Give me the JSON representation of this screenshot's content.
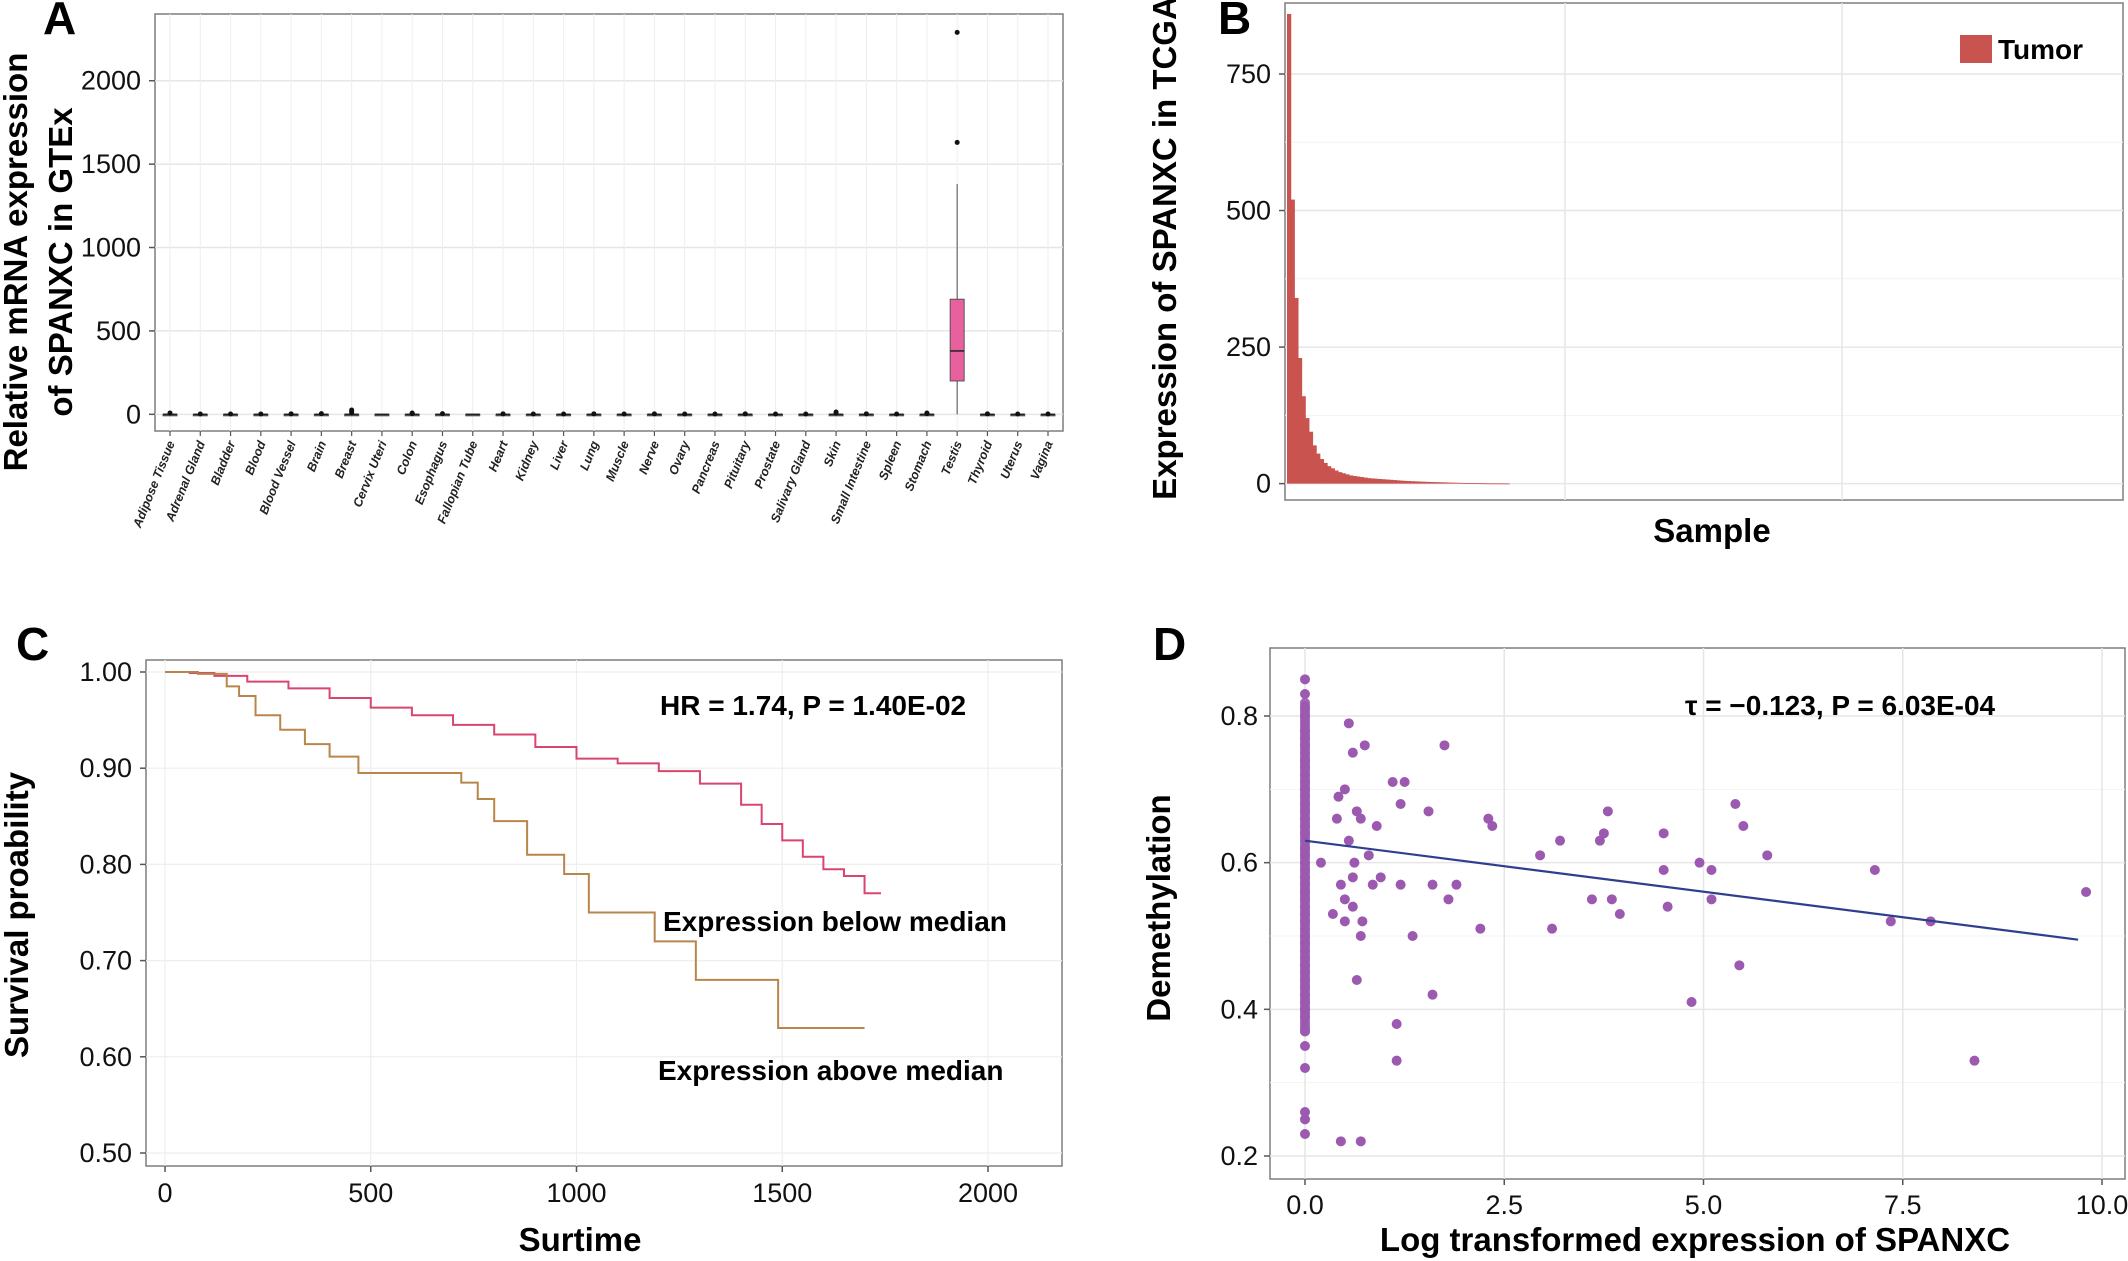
{
  "panels": {
    "a": "A",
    "b": "B",
    "c": "C",
    "d": "D"
  },
  "chart_data": [
    {
      "panel": "A",
      "type": "box",
      "ylabel_line1": "Relative mRNA expression",
      "ylabel_line2": "of SPANXC in GTEx",
      "ylim": [
        -100,
        2400
      ],
      "yticks": [
        0,
        500,
        1000,
        1500,
        2000
      ],
      "grid": true,
      "categories": [
        "Adipose Tissue",
        "Adrenal Gland",
        "Bladder",
        "Blood",
        "Blood Vessel",
        "Brain",
        "Breast",
        "Cervix Uteri",
        "Colon",
        "Esophagus",
        "Fallopian Tube",
        "Heart",
        "Kidney",
        "Liver",
        "Lung",
        "Muscle",
        "Nerve",
        "Ovary",
        "Pancreas",
        "Pituitary",
        "Prostate",
        "Salivary Gland",
        "Skin",
        "Small Intestine",
        "Spleen",
        "Stomach",
        "Testis",
        "Thyroid",
        "Uterus",
        "Vagina"
      ],
      "boxes": [
        {
          "category": "Adipose Tissue",
          "q1": 0,
          "median": 0,
          "q3": 0,
          "whisker_low": 0,
          "whisker_high": 5,
          "outliers": [
            8
          ]
        },
        {
          "category": "Adrenal Gland",
          "q1": 0,
          "median": 0,
          "q3": 0,
          "whisker_low": 0,
          "whisker_high": 0,
          "outliers": [
            2
          ]
        },
        {
          "category": "Bladder",
          "q1": 0,
          "median": 0,
          "q3": 0,
          "whisker_low": 0,
          "whisker_high": 0,
          "outliers": [
            2
          ]
        },
        {
          "category": "Blood",
          "q1": 0,
          "median": 0,
          "q3": 0,
          "whisker_low": 0,
          "whisker_high": 0,
          "outliers": [
            2
          ]
        },
        {
          "category": "Blood Vessel",
          "q1": 0,
          "median": 0,
          "q3": 0,
          "whisker_low": 0,
          "whisker_high": 0,
          "outliers": [
            3
          ]
        },
        {
          "category": "Brain",
          "q1": 0,
          "median": 0,
          "q3": 0,
          "whisker_low": 0,
          "whisker_high": 0,
          "outliers": [
            4
          ]
        },
        {
          "category": "Breast",
          "q1": 0,
          "median": 0,
          "q3": 0,
          "whisker_low": 0,
          "whisker_high": 5,
          "outliers": [
            10,
            18,
            26
          ]
        },
        {
          "category": "Cervix Uteri",
          "q1": 0,
          "median": 0,
          "q3": 0,
          "whisker_low": 0,
          "whisker_high": 0,
          "outliers": []
        },
        {
          "category": "Colon",
          "q1": 0,
          "median": 0,
          "q3": 0,
          "whisker_low": 0,
          "whisker_high": 0,
          "outliers": [
            4,
            8
          ]
        },
        {
          "category": "Esophagus",
          "q1": 0,
          "median": 0,
          "q3": 0,
          "whisker_low": 0,
          "whisker_high": 0,
          "outliers": [
            4
          ]
        },
        {
          "category": "Fallopian Tube",
          "q1": 0,
          "median": 0,
          "q3": 0,
          "whisker_low": 0,
          "whisker_high": 0,
          "outliers": []
        },
        {
          "category": "Heart",
          "q1": 0,
          "median": 0,
          "q3": 0,
          "whisker_low": 0,
          "whisker_high": 0,
          "outliers": [
            3
          ]
        },
        {
          "category": "Kidney",
          "q1": 0,
          "median": 0,
          "q3": 0,
          "whisker_low": 0,
          "whisker_high": 0,
          "outliers": [
            2
          ]
        },
        {
          "category": "Liver",
          "q1": 0,
          "median": 0,
          "q3": 0,
          "whisker_low": 0,
          "whisker_high": 0,
          "outliers": [
            2
          ]
        },
        {
          "category": "Lung",
          "q1": 0,
          "median": 0,
          "q3": 0,
          "whisker_low": 0,
          "whisker_high": 0,
          "outliers": [
            3
          ]
        },
        {
          "category": "Muscle",
          "q1": 0,
          "median": 0,
          "q3": 0,
          "whisker_low": 0,
          "whisker_high": 0,
          "outliers": [
            2
          ]
        },
        {
          "category": "Nerve",
          "q1": 0,
          "median": 0,
          "q3": 0,
          "whisker_low": 0,
          "whisker_high": 0,
          "outliers": [
            3
          ]
        },
        {
          "category": "Ovary",
          "q1": 0,
          "median": 0,
          "q3": 0,
          "whisker_low": 0,
          "whisker_high": 0,
          "outliers": [
            2
          ]
        },
        {
          "category": "Pancreas",
          "q1": 0,
          "median": 0,
          "q3": 0,
          "whisker_low": 0,
          "whisker_high": 0,
          "outliers": [
            2
          ]
        },
        {
          "category": "Pituitary",
          "q1": 0,
          "median": 0,
          "q3": 0,
          "whisker_low": 0,
          "whisker_high": 0,
          "outliers": [
            3
          ]
        },
        {
          "category": "Prostate",
          "q1": 0,
          "median": 0,
          "q3": 0,
          "whisker_low": 0,
          "whisker_high": 0,
          "outliers": [
            2
          ]
        },
        {
          "category": "Salivary Gland",
          "q1": 0,
          "median": 0,
          "q3": 0,
          "whisker_low": 0,
          "whisker_high": 0,
          "outliers": [
            2
          ]
        },
        {
          "category": "Skin",
          "q1": 0,
          "median": 0,
          "q3": 0,
          "whisker_low": 0,
          "whisker_high": 4,
          "outliers": [
            8,
            14
          ]
        },
        {
          "category": "Small Intestine",
          "q1": 0,
          "median": 0,
          "q3": 0,
          "whisker_low": 0,
          "whisker_high": 0,
          "outliers": [
            3
          ]
        },
        {
          "category": "Spleen",
          "q1": 0,
          "median": 0,
          "q3": 0,
          "whisker_low": 0,
          "whisker_high": 0,
          "outliers": [
            2
          ]
        },
        {
          "category": "Stomach",
          "q1": 0,
          "median": 0,
          "q3": 0,
          "whisker_low": 0,
          "whisker_high": 0,
          "outliers": [
            4,
            8
          ]
        },
        {
          "category": "Testis",
          "q1": 200,
          "median": 380,
          "q3": 690,
          "whisker_low": 0,
          "whisker_high": 1380,
          "outliers": [
            1630,
            2290
          ]
        },
        {
          "category": "Thyroid",
          "q1": 0,
          "median": 0,
          "q3": 0,
          "whisker_low": 0,
          "whisker_high": 0,
          "outliers": [
            3
          ]
        },
        {
          "category": "Uterus",
          "q1": 0,
          "median": 0,
          "q3": 0,
          "whisker_low": 0,
          "whisker_high": 0,
          "outliers": [
            2
          ]
        },
        {
          "category": "Vagina",
          "q1": 0,
          "median": 0,
          "q3": 0,
          "whisker_low": 0,
          "whisker_high": 0,
          "outliers": [
            2
          ]
        }
      ],
      "box_color": "#e8609e"
    },
    {
      "panel": "B",
      "type": "bar",
      "xlabel": "Sample",
      "ylabel": "Expression of SPANXC in TCGA",
      "ylim": [
        -30,
        880
      ],
      "yticks": [
        0,
        250,
        500,
        750
      ],
      "grid": true,
      "legend": {
        "label": "Tumor",
        "position": "top-right"
      },
      "bar_color": "#c9534f",
      "n_samples": 800,
      "values": [
        860,
        520,
        340,
        230,
        160,
        120,
        95,
        70,
        55,
        45,
        38,
        32,
        28,
        24,
        21,
        19,
        17,
        15,
        14,
        13,
        12,
        11,
        10,
        9.5,
        9,
        8.5,
        8,
        7.5,
        7,
        6.5,
        6,
        5.5,
        5,
        4.7,
        4.4,
        4.1,
        3.8,
        3.5,
        3.2,
        3.0,
        2.8,
        2.6,
        2.4,
        2.2,
        2.0,
        1.8,
        1.6,
        1.4,
        1.2,
        1.0,
        0.9,
        0.8,
        0.7,
        0.6,
        0.5,
        0.45,
        0.4,
        0.35,
        0.3,
        0.25,
        0.2
      ]
    },
    {
      "panel": "C",
      "type": "line",
      "xlabel": "Surtime",
      "ylabel": "Survival proability",
      "xlim": [
        -50,
        2200
      ],
      "ylim": [
        0.48,
        1.01
      ],
      "xticks": [
        0,
        500,
        1000,
        1500,
        2000
      ],
      "yticks": [
        0.5,
        0.6,
        0.7,
        0.8,
        0.9,
        1.0
      ],
      "ytick_labels": [
        "0.50",
        "0.60",
        "0.70",
        "0.80",
        "0.90",
        "1.00"
      ],
      "annotation": "HR = 1.74, P = 1.40E-02",
      "series": [
        {
          "name": "Expression below median",
          "color": "#d9456e",
          "points": [
            [
              0,
              1.0
            ],
            [
              60,
              0.999
            ],
            [
              120,
              0.996
            ],
            [
              200,
              0.99
            ],
            [
              300,
              0.983
            ],
            [
              400,
              0.973
            ],
            [
              500,
              0.963
            ],
            [
              600,
              0.955
            ],
            [
              700,
              0.945
            ],
            [
              800,
              0.935
            ],
            [
              900,
              0.922
            ],
            [
              1000,
              0.91
            ],
            [
              1100,
              0.905
            ],
            [
              1200,
              0.897
            ],
            [
              1300,
              0.884
            ],
            [
              1400,
              0.862
            ],
            [
              1450,
              0.842
            ],
            [
              1500,
              0.825
            ],
            [
              1550,
              0.808
            ],
            [
              1600,
              0.795
            ],
            [
              1650,
              0.788
            ],
            [
              1700,
              0.77
            ],
            [
              1740,
              0.77
            ]
          ]
        },
        {
          "name": "Expression above median",
          "color": "#b8864a",
          "points": [
            [
              0,
              1.0
            ],
            [
              80,
              0.998
            ],
            [
              150,
              0.985
            ],
            [
              180,
              0.975
            ],
            [
              220,
              0.955
            ],
            [
              280,
              0.94
            ],
            [
              340,
              0.925
            ],
            [
              400,
              0.912
            ],
            [
              470,
              0.895
            ],
            [
              720,
              0.885
            ],
            [
              760,
              0.868
            ],
            [
              800,
              0.845
            ],
            [
              880,
              0.81
            ],
            [
              970,
              0.79
            ],
            [
              1030,
              0.75
            ],
            [
              1070,
              0.75
            ],
            [
              1190,
              0.72
            ],
            [
              1290,
              0.68
            ],
            [
              1490,
              0.63
            ],
            [
              1700,
              0.63
            ]
          ]
        }
      ]
    },
    {
      "panel": "D",
      "type": "scatter",
      "xlabel": "Log transformed expression of SPANXC",
      "ylabel": "Demethylation",
      "xlim": [
        -0.4,
        10.1
      ],
      "ylim": [
        0.18,
        0.89
      ],
      "xticks": [
        0,
        2.5,
        5.0,
        7.5,
        10.0
      ],
      "xtick_labels": [
        "0.0",
        "2.5",
        "5.0",
        "7.5",
        "10.0"
      ],
      "yticks": [
        0.2,
        0.4,
        0.6,
        0.8
      ],
      "annotation": "τ = −0.123, P = 6.03E-04",
      "point_color": "#9b59b0",
      "line_color": "#2f3f8f",
      "regression": {
        "x0": 0,
        "y0": 0.63,
        "x1": 9.7,
        "y1": 0.495
      },
      "zero_group_y_range": [
        0.23,
        0.85
      ],
      "points": [
        [
          0.0,
          0.85
        ],
        [
          0.0,
          0.83
        ],
        [
          0.0,
          0.81
        ],
        [
          0.0,
          0.8
        ],
        [
          0.0,
          0.78
        ],
        [
          0.0,
          0.77
        ],
        [
          0.0,
          0.76
        ],
        [
          0.0,
          0.75
        ],
        [
          0.0,
          0.74
        ],
        [
          0.0,
          0.73
        ],
        [
          0.0,
          0.72
        ],
        [
          0.0,
          0.71
        ],
        [
          0.0,
          0.7
        ],
        [
          0.0,
          0.69
        ],
        [
          0.0,
          0.68
        ],
        [
          0.0,
          0.67
        ],
        [
          0.0,
          0.66
        ],
        [
          0.0,
          0.65
        ],
        [
          0.0,
          0.64
        ],
        [
          0.0,
          0.63
        ],
        [
          0.0,
          0.62
        ],
        [
          0.0,
          0.61
        ],
        [
          0.0,
          0.6
        ],
        [
          0.0,
          0.59
        ],
        [
          0.0,
          0.58
        ],
        [
          0.0,
          0.57
        ],
        [
          0.0,
          0.56
        ],
        [
          0.0,
          0.55
        ],
        [
          0.0,
          0.54
        ],
        [
          0.0,
          0.53
        ],
        [
          0.0,
          0.52
        ],
        [
          0.0,
          0.51
        ],
        [
          0.0,
          0.5
        ],
        [
          0.0,
          0.49
        ],
        [
          0.0,
          0.48
        ],
        [
          0.0,
          0.47
        ],
        [
          0.0,
          0.46
        ],
        [
          0.0,
          0.45
        ],
        [
          0.0,
          0.44
        ],
        [
          0.0,
          0.43
        ],
        [
          0.0,
          0.42
        ],
        [
          0.0,
          0.41
        ],
        [
          0.0,
          0.4
        ],
        [
          0.0,
          0.39
        ],
        [
          0.0,
          0.37
        ],
        [
          0.0,
          0.35
        ],
        [
          0.0,
          0.32
        ],
        [
          0.0,
          0.26
        ],
        [
          0.0,
          0.25
        ],
        [
          0.0,
          0.23
        ],
        [
          0.35,
          0.53
        ],
        [
          0.4,
          0.66
        ],
        [
          0.42,
          0.69
        ],
        [
          0.45,
          0.57
        ],
        [
          0.5,
          0.52
        ],
        [
          0.5,
          0.55
        ],
        [
          0.5,
          0.7
        ],
        [
          0.55,
          0.63
        ],
        [
          0.55,
          0.79
        ],
        [
          0.6,
          0.54
        ],
        [
          0.6,
          0.58
        ],
        [
          0.6,
          0.75
        ],
        [
          0.62,
          0.6
        ],
        [
          0.65,
          0.44
        ],
        [
          0.65,
          0.67
        ],
        [
          0.7,
          0.5
        ],
        [
          0.7,
          0.66
        ],
        [
          0.72,
          0.52
        ],
        [
          0.75,
          0.76
        ],
        [
          0.8,
          0.61
        ],
        [
          0.85,
          0.57
        ],
        [
          0.9,
          0.65
        ],
        [
          0.95,
          0.58
        ],
        [
          1.1,
          0.71
        ],
        [
          1.15,
          0.38
        ],
        [
          1.2,
          0.57
        ],
        [
          1.2,
          0.68
        ],
        [
          1.25,
          0.71
        ],
        [
          1.35,
          0.5
        ],
        [
          1.55,
          0.67
        ],
        [
          1.6,
          0.42
        ],
        [
          1.6,
          0.57
        ],
        [
          1.75,
          0.76
        ],
        [
          1.8,
          0.55
        ],
        [
          1.9,
          0.57
        ],
        [
          2.2,
          0.51
        ],
        [
          2.3,
          0.66
        ],
        [
          2.35,
          0.65
        ],
        [
          2.95,
          0.61
        ],
        [
          3.1,
          0.51
        ],
        [
          3.2,
          0.63
        ],
        [
          3.6,
          0.55
        ],
        [
          3.7,
          0.63
        ],
        [
          3.75,
          0.64
        ],
        [
          3.8,
          0.67
        ],
        [
          3.85,
          0.55
        ],
        [
          3.95,
          0.53
        ],
        [
          4.5,
          0.64
        ],
        [
          4.5,
          0.59
        ],
        [
          4.55,
          0.54
        ],
        [
          4.85,
          0.41
        ],
        [
          4.95,
          0.6
        ],
        [
          5.1,
          0.55
        ],
        [
          5.1,
          0.59
        ],
        [
          5.4,
          0.68
        ],
        [
          5.45,
          0.46
        ],
        [
          5.5,
          0.65
        ],
        [
          5.8,
          0.61
        ],
        [
          7.15,
          0.59
        ],
        [
          7.35,
          0.52
        ],
        [
          7.85,
          0.52
        ],
        [
          8.4,
          0.33
        ],
        [
          9.8,
          0.56
        ],
        [
          0.45,
          0.22
        ],
        [
          0.7,
          0.22
        ],
        [
          1.15,
          0.33
        ],
        [
          0.2,
          0.6
        ]
      ]
    }
  ]
}
